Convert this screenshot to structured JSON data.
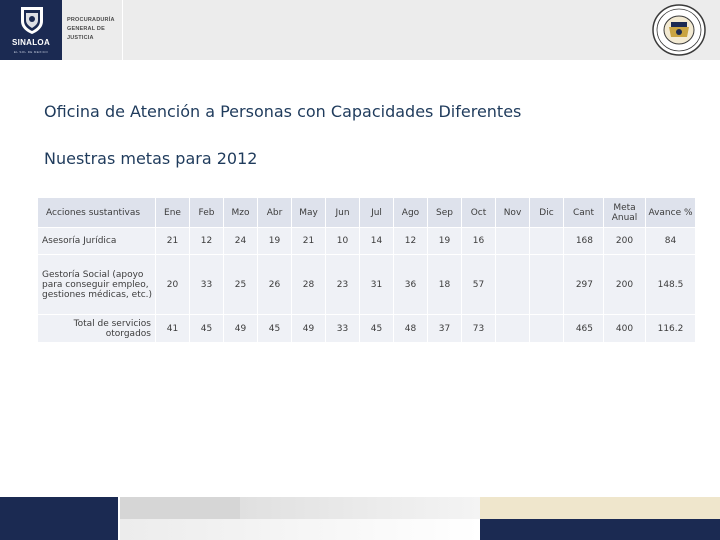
{
  "header": {
    "state_name": "SINALOA",
    "state_tagline": "EL SOL DE MEXICO",
    "org_lines": [
      "PROCURADURÍA",
      "GENERAL DE",
      "JUSTICIA"
    ],
    "colors": {
      "navy": "#1b2a52",
      "gold": "#c9a441"
    }
  },
  "title": "Oficina de Atención a Personas con Capacidades Diferentes",
  "subtitle": "Nuestras metas para 2012",
  "table": {
    "headers": [
      "Acciones sustantivas",
      "Ene",
      "Feb",
      "Mzo",
      "Abr",
      "May",
      "Jun",
      "Jul",
      "Ago",
      "Sep",
      "Oct",
      "Nov",
      "Dic",
      "Cant",
      "Meta Anual",
      "Avance %"
    ],
    "rows": [
      {
        "label": "Asesoría Jurídica",
        "cells": [
          "21",
          "12",
          "24",
          "19",
          "21",
          "10",
          "14",
          "12",
          "19",
          "16",
          "",
          "",
          "168",
          "200",
          "84"
        ]
      },
      {
        "label": "Gestoría Social (apoyo para conseguir empleo, gestiones médicas, etc.)",
        "cells": [
          "20",
          "33",
          "25",
          "26",
          "28",
          "23",
          "31",
          "36",
          "18",
          "57",
          "",
          "",
          "297",
          "200",
          "148.5"
        ]
      },
      {
        "label": "Total de servicios otorgados",
        "cells": [
          "41",
          "45",
          "49",
          "45",
          "49",
          "33",
          "45",
          "48",
          "37",
          "73",
          "",
          "",
          "465",
          "400",
          "116.2"
        ]
      }
    ]
  }
}
